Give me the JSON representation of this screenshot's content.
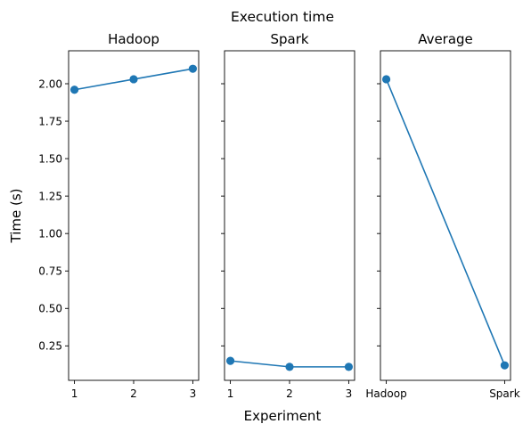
{
  "chart_data": {
    "suptitle": "Execution time",
    "ylabel": "Time (s)",
    "xlabel": "Experiment",
    "ylim": [
      0.02,
      2.22
    ],
    "shared_y": true,
    "y_ticks": [
      0.25,
      0.5,
      0.75,
      1.0,
      1.25,
      1.5,
      1.75,
      2.0
    ],
    "y_tick_labels": [
      "0.25",
      "0.50",
      "0.75",
      "1.00",
      "1.25",
      "1.50",
      "1.75",
      "2.00"
    ],
    "line_color": "#1f77b4",
    "panels": [
      {
        "type": "line",
        "title": "Hadoop",
        "x": [
          "1",
          "2",
          "3"
        ],
        "values": [
          1.96,
          2.03,
          2.1
        ],
        "marker": "circle"
      },
      {
        "type": "line",
        "title": "Spark",
        "x": [
          "1",
          "2",
          "3"
        ],
        "values": [
          0.15,
          0.11,
          0.11
        ],
        "marker": "circle"
      },
      {
        "type": "line",
        "title": "Average",
        "x": [
          "Hadoop",
          "Spark"
        ],
        "values": [
          2.03,
          0.12
        ],
        "marker": "circle"
      }
    ]
  }
}
